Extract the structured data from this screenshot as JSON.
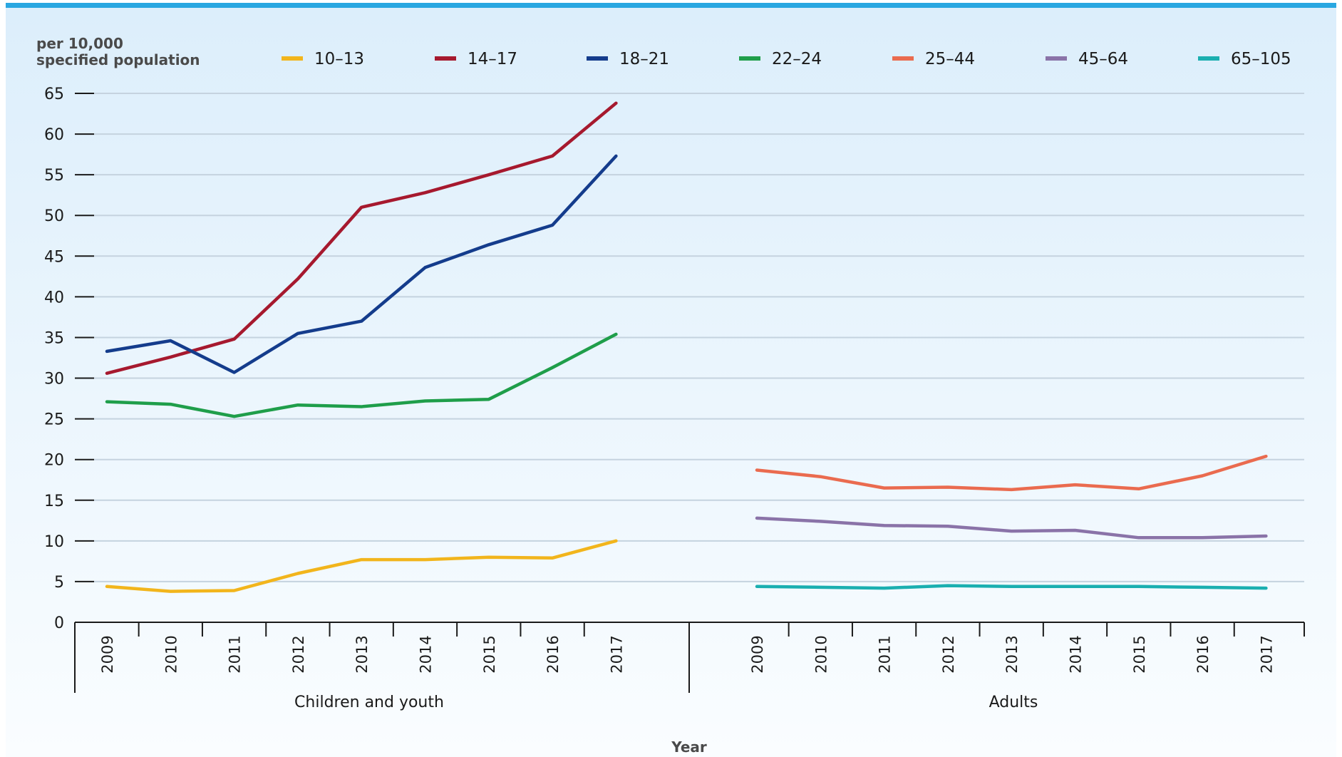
{
  "chart_data": {
    "type": "line",
    "ylabel": [
      "per 10,000",
      "specified population"
    ],
    "xlabel": "Year",
    "ylim": [
      0,
      65
    ],
    "yticks": [
      "0",
      "5",
      "10",
      "15",
      "20",
      "25",
      "30",
      "35",
      "40",
      "45",
      "50",
      "55",
      "60",
      "65"
    ],
    "grid": "horizontal",
    "legend_position": "top",
    "groups": [
      {
        "label": "Children and youth",
        "x": [
          "2009",
          "2010",
          "2011",
          "2012",
          "2013",
          "2014",
          "2015",
          "2016",
          "2017"
        ],
        "series": [
          {
            "name": "10–13",
            "color": "#f2b51c",
            "values": [
              4.4,
              3.8,
              3.9,
              6.0,
              7.7,
              7.7,
              8.0,
              7.9,
              10.0
            ]
          },
          {
            "name": "14–17",
            "color": "#a6192e",
            "values": [
              30.6,
              32.6,
              34.8,
              42.2,
              51.0,
              52.8,
              55.0,
              57.3,
              63.8
            ]
          },
          {
            "name": "18–21",
            "color": "#143c8c",
            "values": [
              33.3,
              34.6,
              30.7,
              35.5,
              37.0,
              43.6,
              46.4,
              48.8,
              57.3
            ]
          },
          {
            "name": "22–24",
            "color": "#1f9e4a",
            "values": [
              27.1,
              26.8,
              25.3,
              26.7,
              26.5,
              27.2,
              27.4,
              31.3,
              35.4
            ]
          }
        ]
      },
      {
        "label": "Adults",
        "x": [
          "2009",
          "2010",
          "2011",
          "2012",
          "2013",
          "2014",
          "2015",
          "2016",
          "2017"
        ],
        "series": [
          {
            "name": "25–44",
            "color": "#ea6b4f",
            "values": [
              18.7,
              17.9,
              16.5,
              16.6,
              16.3,
              16.9,
              16.4,
              18.0,
              20.4
            ]
          },
          {
            "name": "45–64",
            "color": "#8a73a8",
            "values": [
              12.8,
              12.4,
              11.9,
              11.8,
              11.2,
              11.3,
              10.4,
              10.4,
              10.6
            ]
          },
          {
            "name": "65–105",
            "color": "#1bafb0",
            "values": [
              4.4,
              4.3,
              4.2,
              4.5,
              4.4,
              4.4,
              4.4,
              4.3,
              4.2
            ]
          }
        ]
      }
    ],
    "legend": [
      "10–13",
      "14–17",
      "18–21",
      "22–24",
      "25–44",
      "45–64",
      "65–105"
    ]
  }
}
